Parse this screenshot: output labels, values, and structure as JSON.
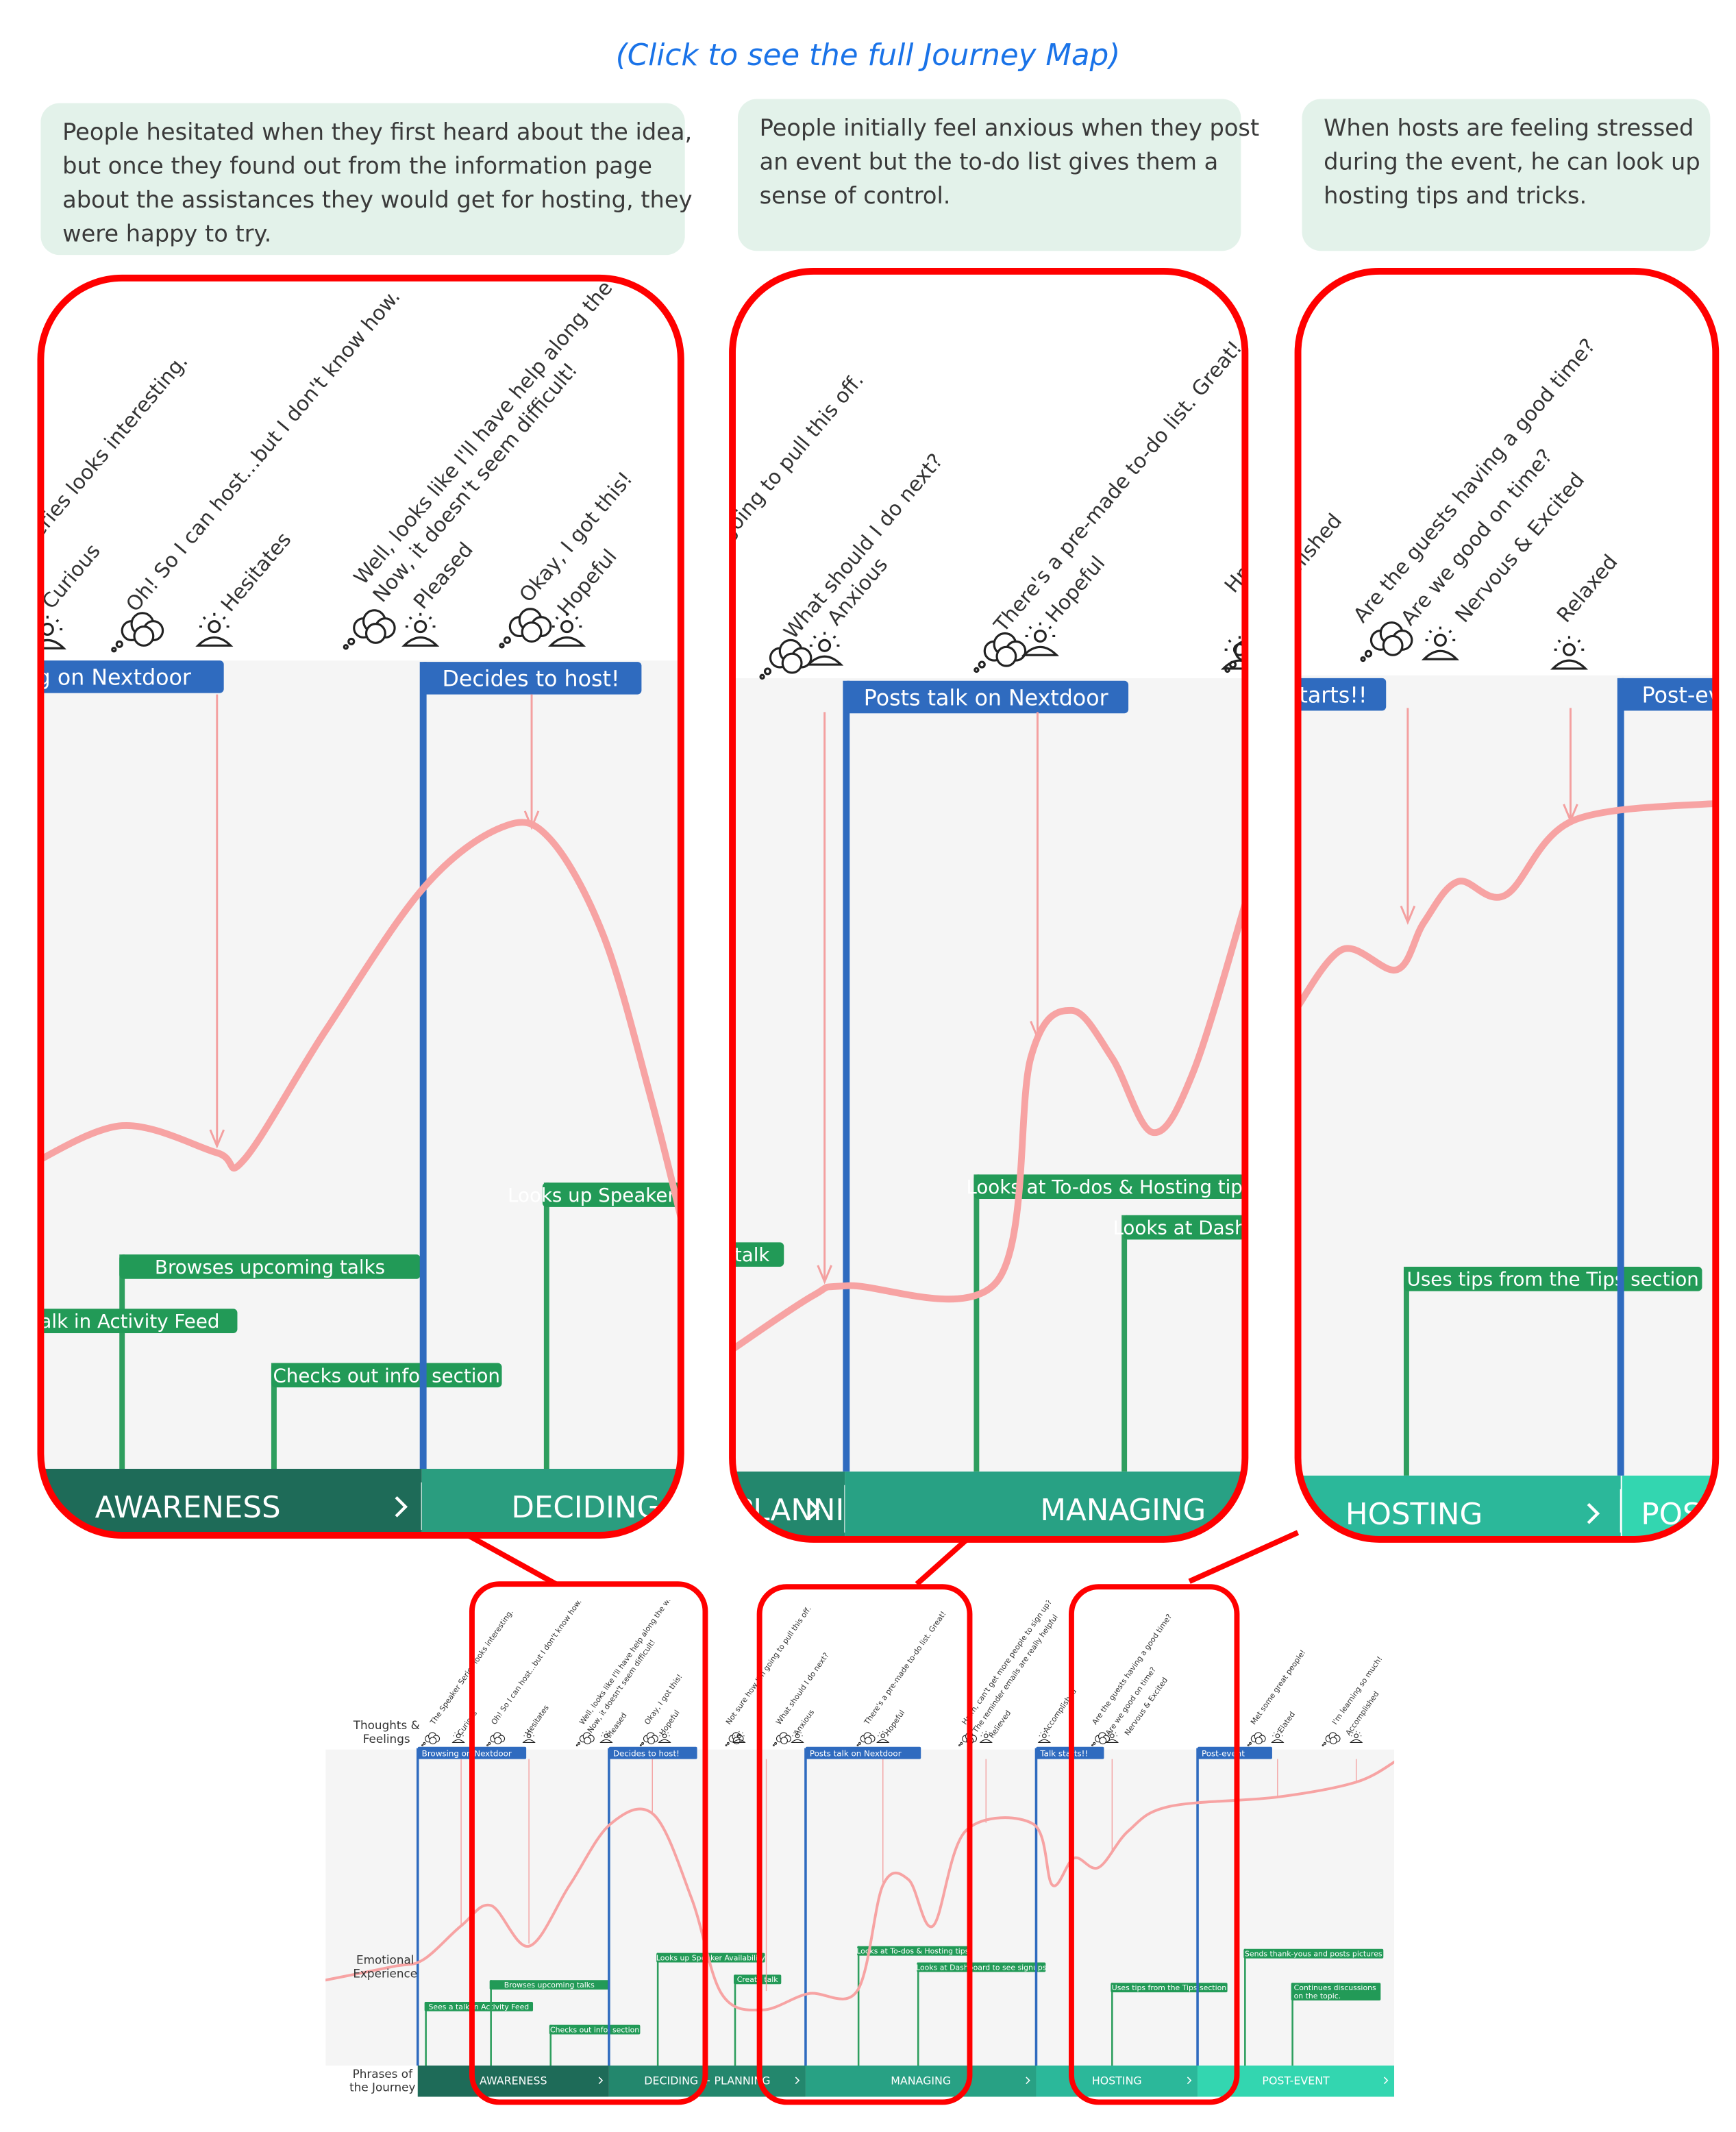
{
  "link": "(Click to see the full Journey Map)",
  "callouts": [
    {
      "lines": [
        "People hesitated when they first heard about the idea,",
        "but once they found out from the information page",
        "about the assistances they would get for hosting, they",
        "were happy to try."
      ]
    },
    {
      "lines": [
        "People initially feel anxious when they post",
        "an event but the to-do list gives them a",
        "sense of control."
      ]
    },
    {
      "lines": [
        "When hosts are feeling stressed",
        "during the event, he can look up",
        "hosting tips and tricks."
      ]
    }
  ],
  "zoom_panels": [
    {
      "thoughts": [
        "The Speaker Series looks interesting.",
        "Curious",
        "Oh! So I can host…but I don't know how.",
        "Hesitates",
        "Well, looks like I'll have help along the way.",
        "Now, it doesn't seem difficult!",
        "Pleased",
        "Okay, I got this!",
        "Hopeful"
      ],
      "touchpoints": [
        "Browsing on Nextdoor",
        "Decides to host!"
      ],
      "actions": [
        "Browses upcoming talks",
        "Sees a talk in Activity Feed",
        "Checks out info. section",
        "Looks up Speaker Availability"
      ],
      "phases": [
        "AWARENESS",
        "DECIDING + PLANNING"
      ]
    },
    {
      "thoughts": [
        "Not sure how I'm going to pull this off.",
        "What should I do next?",
        "Anxious",
        "There's a pre-made to-do list. Great!",
        "Hopeful",
        "Hmm, can't get more people to sign up?"
      ],
      "touchpoints": [
        "Posts talk on Nextdoor"
      ],
      "actions": [
        "Create talk",
        "Looks at To-dos & Hosting tips",
        "Looks at Dashboard to see signups"
      ],
      "phases": [
        "DECIDING + PLANNING",
        "MANAGING"
      ]
    },
    {
      "thoughts": [
        "Accomplished",
        "Are the guests having a good time?",
        "Are we good on time?",
        "Nervous & Excited",
        "Relaxed"
      ],
      "touchpoints": [
        "Talk starts!!",
        "Post-event"
      ],
      "actions": [
        "Uses tips from the Tips section"
      ],
      "phases": [
        "HOSTING",
        "POST-EVENT"
      ]
    }
  ],
  "overview": {
    "row_labels": [
      [
        "Thoughts &",
        "Feelings"
      ],
      [
        "Emotional",
        "Experience"
      ],
      [
        "Phrases of",
        "the Journey"
      ]
    ],
    "thoughts": [
      "The Speaker Series looks interesting.",
      "Curious",
      "Oh! So I can host…but I don't know how.",
      "Hesitates",
      "Well, looks like I'll have help along the way.",
      "Now, it doesn't seem difficult!",
      "Pleased",
      "Okay, I got this!",
      "Hopeful",
      "Not sure how I'm going to pull this off.",
      "What should I do next?",
      "Anxious",
      "There's a pre-made to-do list. Great!",
      "Hopeful",
      "Hmm, can't get more people to sign up?",
      "The reminder emails are really helpful",
      "Relieved",
      "Accomplished",
      "Are the guests having a good time?",
      "Are we good on time?",
      "Nervous & Excited",
      "Met some great people!",
      "Elated",
      "I'm learning so much!",
      "Accomplished"
    ],
    "touchpoints": [
      "Browsing on Nextdoor",
      "Decides to host!",
      "Posts talk on Nextdoor",
      "Talk starts!!",
      "Post-event"
    ],
    "actions": [
      "Sees a talk in Activity Feed",
      "Browses upcoming talks",
      "Checks out info. section",
      "Looks up Speaker Availability",
      "Create talk",
      "Looks at To-dos & Hosting tips",
      "Looks at Dashboard to see signups",
      "Uses tips from the Tips section",
      "Sends thank-yous and posts pictures",
      [
        "Continues discussions",
        "on the topic."
      ]
    ],
    "phases": [
      "AWARENESS",
      "DECIDING + PLANNING",
      "MANAGING",
      "HOSTING",
      "POST-EVENT"
    ]
  }
}
